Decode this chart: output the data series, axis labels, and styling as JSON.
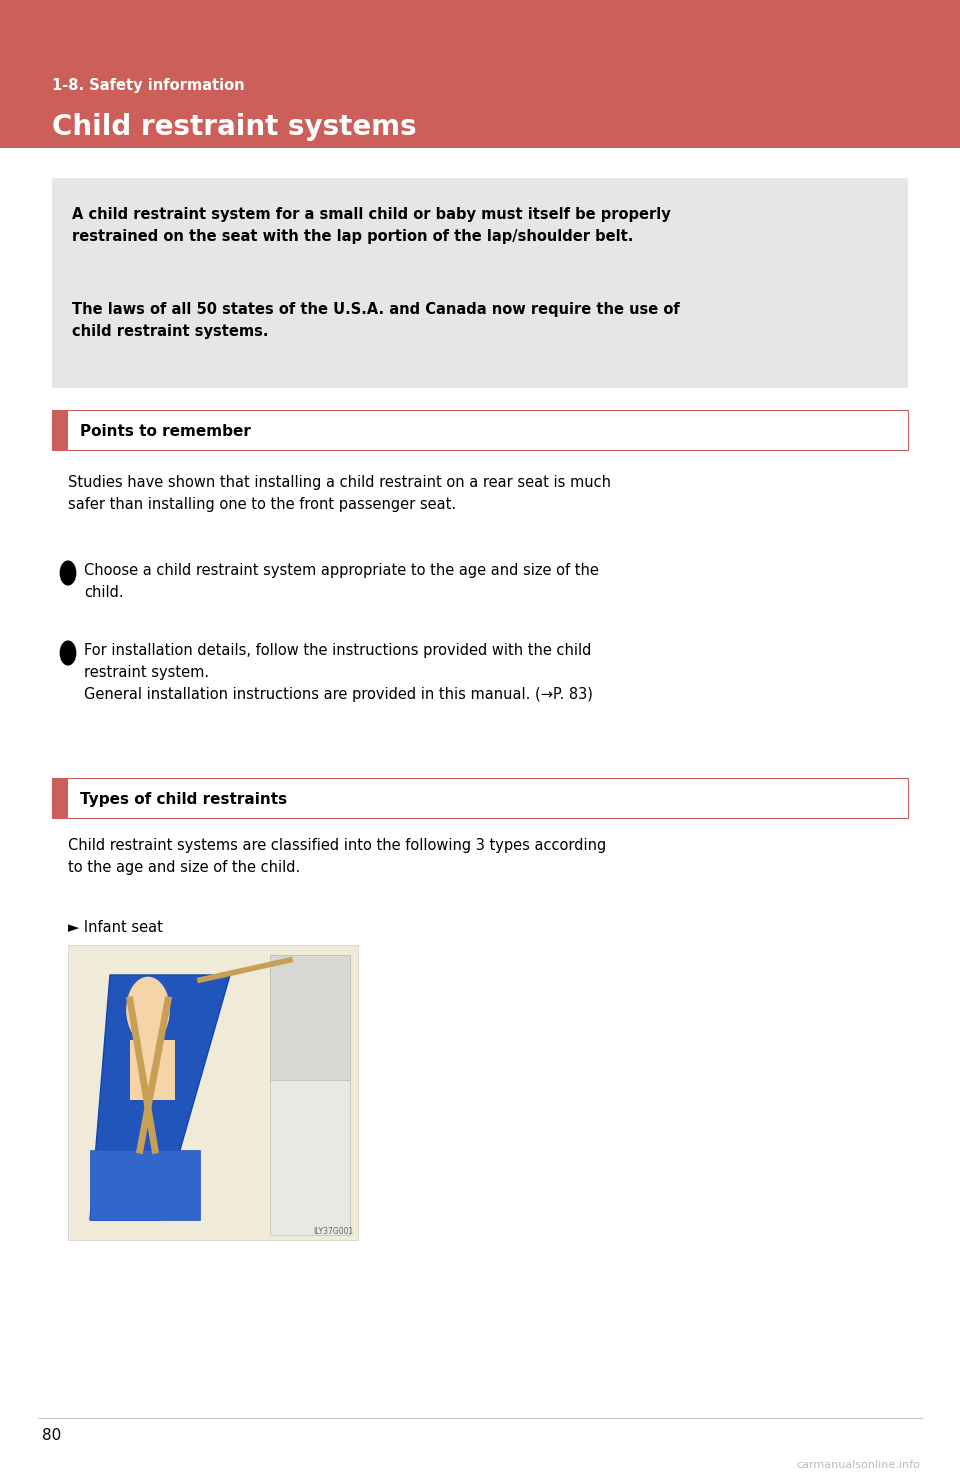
{
  "page_bg": "#ffffff",
  "header_bg": "#cc5f5a",
  "header_small_text": "1-8. Safety information",
  "header_large_text": "Child restraint systems",
  "warning_box_bg": "#e6e6e6",
  "warning_box_text1": "A child restraint system for a small child or baby must itself be properly\nrestrained on the seat with the lap portion of the lap/shoulder belt.",
  "warning_box_text2": "The laws of all 50 states of the U.S.A. and Canada now require the use of\nchild restraint systems.",
  "section1_label": "Points to remember",
  "section2_label": "Types of child restraints",
  "section_bar_color": "#cc5f5a",
  "section_box_border": "#cc5f5a",
  "para1": "Studies have shown that installing a child restraint on a rear seat is much\nsafer than installing one to the front passenger seat.",
  "bullet1_line1": "Choose a child restraint system appropriate to the age and size of the",
  "bullet1_line2": "child.",
  "bullet2_line1": "For installation details, follow the instructions provided with the child",
  "bullet2_line2": "restraint system.",
  "bullet2_line3": "General installation instructions are provided in this manual. (→P. 83)",
  "para2_line1": "Child restraint systems are classified into the following 3 types according",
  "para2_line2": "to the age and size of the child.",
  "infant_label": "► Infant seat",
  "page_number": "80",
  "watermark": "carmanualsonline.info",
  "img_tag": "ILY37G001",
  "img_bg": "#f0ead8"
}
